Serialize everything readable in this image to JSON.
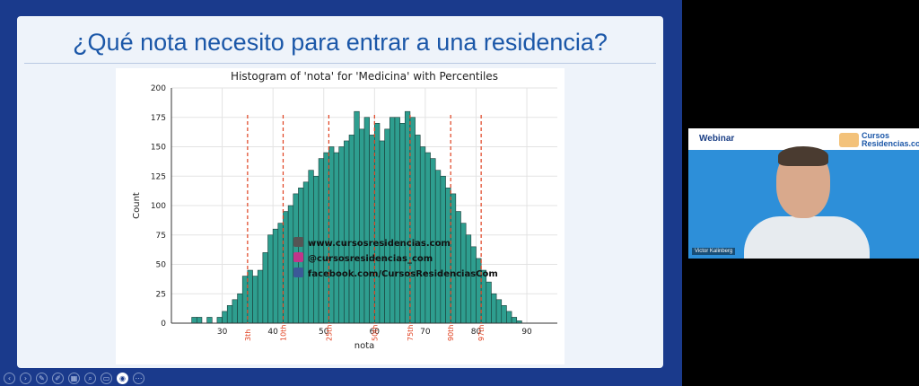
{
  "slide": {
    "title": "¿Qué nota necesito para entrar a una residencia?"
  },
  "chart_data": {
    "type": "bar",
    "title": "Histogram of 'nota' for 'Medicina' with Percentiles",
    "xlabel": "nota",
    "ylabel": "Count",
    "xlim": [
      20,
      96
    ],
    "ylim": [
      0,
      200
    ],
    "xticks": [
      30,
      40,
      50,
      60,
      70,
      80,
      90
    ],
    "yticks": [
      0,
      25,
      50,
      75,
      100,
      125,
      150,
      175,
      200
    ],
    "bar_color": "#2e9e8f",
    "bin_start": 24,
    "bin_width": 1,
    "values": [
      5,
      5,
      0,
      5,
      0,
      5,
      10,
      15,
      20,
      25,
      40,
      45,
      40,
      45,
      60,
      75,
      80,
      85,
      95,
      100,
      110,
      115,
      120,
      130,
      125,
      140,
      145,
      150,
      145,
      150,
      155,
      160,
      180,
      165,
      175,
      160,
      170,
      155,
      165,
      175,
      175,
      170,
      180,
      175,
      160,
      150,
      145,
      140,
      130,
      125,
      115,
      110,
      95,
      85,
      75,
      65,
      55,
      45,
      35,
      25,
      20,
      15,
      10,
      5,
      2
    ],
    "percentiles": [
      {
        "label": "3th",
        "x": 35
      },
      {
        "label": "10th",
        "x": 42
      },
      {
        "label": "25th",
        "x": 51
      },
      {
        "label": "50th",
        "x": 60
      },
      {
        "label": "75th",
        "x": 67
      },
      {
        "label": "90th",
        "x": 75
      },
      {
        "label": "97th",
        "x": 81
      }
    ],
    "percentile_color": "#e0401f",
    "watermark": {
      "lines": [
        "www.cursosresidencias.com",
        "@cursosresidencias_com",
        "facebook.com/CursosResidenciasCom"
      ]
    }
  },
  "webcam": {
    "header": "Webinar",
    "logo_text": [
      "Cursos",
      "Residencias.com"
    ],
    "presenter_name": "Victor Kalinberg"
  },
  "controls": {
    "icons": [
      "prev-icon",
      "next-icon",
      "pen-icon",
      "draw-icon",
      "slides-icon",
      "zoom-icon",
      "subtitles-icon",
      "camera-icon",
      "more-icon"
    ],
    "glyphs": [
      "‹",
      "›",
      "✎",
      "✐",
      "▦",
      "⌕",
      "▭",
      "◉",
      "⋯"
    ]
  }
}
